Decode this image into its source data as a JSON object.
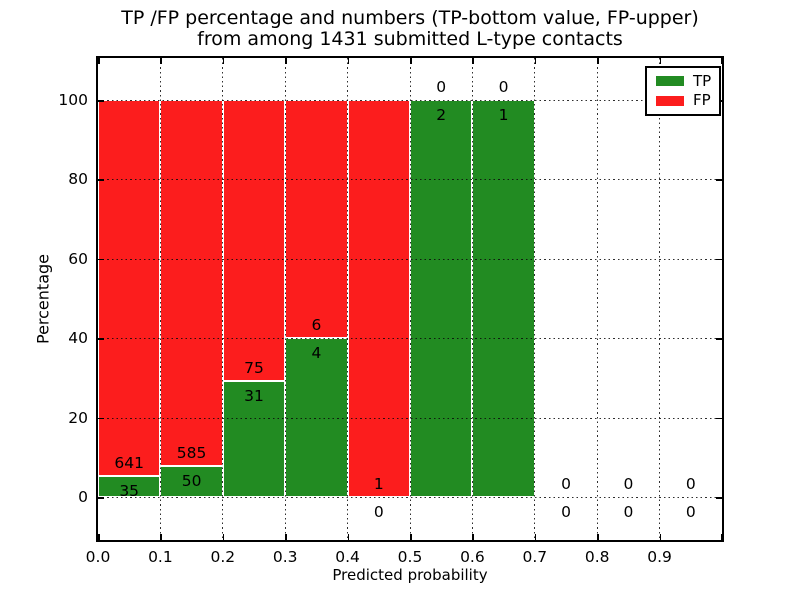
{
  "chart_data": {
    "type": "bar",
    "stacked": true,
    "normalized_to_percent": true,
    "title_line1": "TP /FP percentage and numbers (TP-bottom value, FP-upper)",
    "title_line2": "from among 1431 submitted L-type contacts",
    "xlabel": "Predicted probability",
    "ylabel": "Percentage",
    "total_contacts": 1431,
    "xlim": [
      0.0,
      1.0
    ],
    "ylim": [
      -10.8,
      110.6
    ],
    "bin_width": 0.1,
    "x_tick_labels": [
      "0.0",
      "0.1",
      "0.2",
      "0.3",
      "0.4",
      "0.5",
      "0.6",
      "0.7",
      "0.8",
      "0.9"
    ],
    "y_tick_labels": [
      "0",
      "20",
      "40",
      "60",
      "80",
      "100"
    ],
    "y_tick_values": [
      0,
      20,
      40,
      60,
      80,
      100
    ],
    "grid": "dotted",
    "legend": {
      "position": "upper right",
      "entries": [
        {
          "label": "TP",
          "color": "#228b22"
        },
        {
          "label": "FP",
          "color": "#fc1d1d"
        }
      ]
    },
    "bins": [
      {
        "x_start": 0.0,
        "x_end": 0.1,
        "tp": 35,
        "fp": 641,
        "tp_pct": 5.2,
        "fp_pct": 94.8
      },
      {
        "x_start": 0.1,
        "x_end": 0.2,
        "tp": 50,
        "fp": 585,
        "tp_pct": 7.9,
        "fp_pct": 92.1
      },
      {
        "x_start": 0.2,
        "x_end": 0.3,
        "tp": 31,
        "fp": 75,
        "tp_pct": 29.2,
        "fp_pct": 70.8
      },
      {
        "x_start": 0.3,
        "x_end": 0.4,
        "tp": 4,
        "fp": 6,
        "tp_pct": 40.0,
        "fp_pct": 60.0
      },
      {
        "x_start": 0.4,
        "x_end": 0.5,
        "tp": 0,
        "fp": 1,
        "tp_pct": 0.0,
        "fp_pct": 100.0
      },
      {
        "x_start": 0.5,
        "x_end": 0.6,
        "tp": 2,
        "fp": 0,
        "tp_pct": 100.0,
        "fp_pct": 0.0
      },
      {
        "x_start": 0.6,
        "x_end": 0.7,
        "tp": 1,
        "fp": 0,
        "tp_pct": 100.0,
        "fp_pct": 0.0
      },
      {
        "x_start": 0.7,
        "x_end": 0.8,
        "tp": 0,
        "fp": 0,
        "tp_pct": 0.0,
        "fp_pct": 0.0
      },
      {
        "x_start": 0.8,
        "x_end": 0.9,
        "tp": 0,
        "fp": 0,
        "tp_pct": 0.0,
        "fp_pct": 0.0
      },
      {
        "x_start": 0.9,
        "x_end": 1.0,
        "tp": 0,
        "fp": 0,
        "tp_pct": 0.0,
        "fp_pct": 0.0
      }
    ],
    "colors": {
      "tp_bar": "#228b22",
      "fp_bar": "#fc1d1d",
      "bar_edge": "#ffffff",
      "grid": "#0a0a0a",
      "text": "#000000",
      "background": "#ffffff"
    }
  }
}
